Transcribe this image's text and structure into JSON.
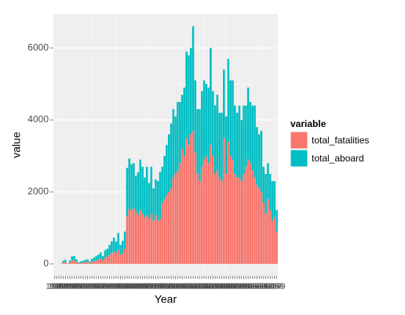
{
  "chart_data": {
    "type": "bar",
    "stacked": true,
    "x_label": "Year",
    "y_label": "value",
    "legend_title": "variable",
    "categories": [
      1908,
      1909,
      1910,
      1911,
      1912,
      1913,
      1914,
      1915,
      1916,
      1917,
      1918,
      1919,
      1920,
      1921,
      1922,
      1923,
      1924,
      1925,
      1926,
      1927,
      1928,
      1929,
      1930,
      1931,
      1932,
      1933,
      1934,
      1935,
      1936,
      1937,
      1938,
      1939,
      1940,
      1941,
      1942,
      1943,
      1944,
      1945,
      1946,
      1947,
      1948,
      1949,
      1950,
      1951,
      1952,
      1953,
      1954,
      1955,
      1956,
      1957,
      1958,
      1959,
      1960,
      1961,
      1962,
      1963,
      1964,
      1965,
      1966,
      1967,
      1968,
      1969,
      1970,
      1971,
      1972,
      1973,
      1974,
      1975,
      1976,
      1977,
      1978,
      1979,
      1980,
      1981,
      1982,
      1983,
      1984,
      1985,
      1986,
      1987,
      1988,
      1989,
      1990,
      1991,
      1992,
      1993,
      1994,
      1995,
      1996,
      1997,
      1998,
      1999,
      2000,
      2001,
      2002,
      2003,
      2004,
      2005,
      2006,
      2007,
      2008,
      2009
    ],
    "series": [
      {
        "name": "total_fatalities",
        "color": "#F8766D",
        "values": [
          1,
          0,
          2,
          5,
          41,
          52,
          7,
          45,
          99,
          100,
          60,
          20,
          30,
          40,
          50,
          60,
          30,
          60,
          80,
          100,
          120,
          150,
          100,
          180,
          200,
          250,
          300,
          350,
          300,
          400,
          250,
          300,
          420,
          1320,
          1530,
          1500,
          1550,
          1450,
          1350,
          1500,
          1400,
          1300,
          1350,
          1250,
          1400,
          1200,
          1350,
          1200,
          1250,
          1700,
          1800,
          1900,
          2000,
          2100,
          2400,
          2500,
          2600,
          2800,
          3200,
          3000,
          3500,
          3300,
          3600,
          3700,
          3100,
          2500,
          2300,
          2700,
          2900,
          3000,
          2800,
          3300,
          3000,
          2500,
          2600,
          2400,
          2300,
          3500,
          2500,
          3400,
          3000,
          2900,
          2500,
          2400,
          2400,
          2300,
          2500,
          2700,
          2900,
          2800,
          2600,
          2400,
          2200,
          2100,
          2000,
          1700,
          1400,
          1800,
          1500,
          1200,
          1300,
          900
        ]
      },
      {
        "name": "total_aboard",
        "color": "#00BFC4",
        "values": [
          2,
          0,
          2,
          5,
          51,
          60,
          10,
          50,
          110,
          120,
          70,
          30,
          40,
          50,
          60,
          70,
          40,
          80,
          100,
          120,
          140,
          170,
          120,
          200,
          220,
          280,
          330,
          380,
          320,
          460,
          280,
          340,
          480,
          1350,
          1400,
          1270,
          1250,
          1000,
          1200,
          1400,
          1300,
          1100,
          1350,
          1000,
          1300,
          900,
          1000,
          1100,
          1300,
          1000,
          1200,
          1400,
          1600,
          1800,
          1900,
          1600,
          1900,
          1700,
          1500,
          1900,
          2400,
          2500,
          2400,
          2900,
          2000,
          1800,
          2000,
          2100,
          2200,
          2000,
          2100,
          2700,
          1800,
          1900,
          2100,
          1800,
          1900,
          1900,
          1600,
          2300,
          2100,
          2200,
          1900,
          1800,
          2000,
          1700,
          1900,
          1700,
          2000,
          1700,
          1800,
          2000,
          1600,
          1500,
          1700,
          1000,
          1100,
          1000,
          1000,
          1100,
          1000,
          600
        ]
      }
    ],
    "ylim": [
      -330,
      6940
    ],
    "yticks": [
      0,
      2000,
      4000,
      6000
    ],
    "grid": true,
    "panel_color": "#EBEBEB"
  }
}
